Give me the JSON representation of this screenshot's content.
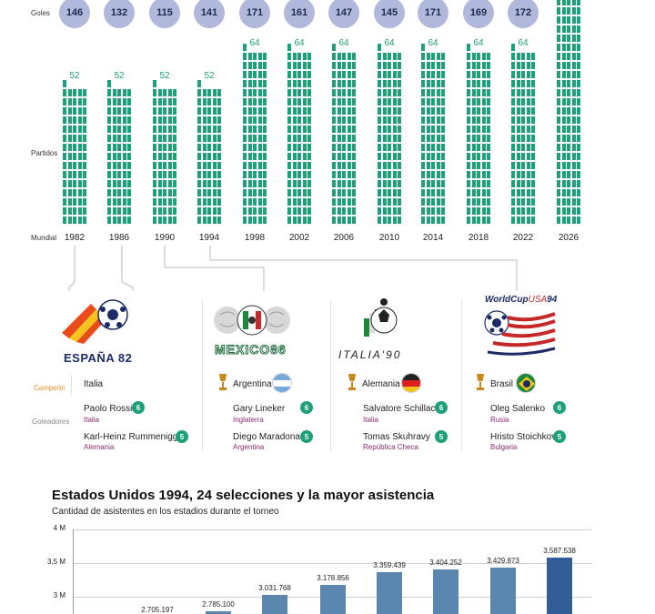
{
  "labels": {
    "goals": "Goles",
    "matches": "Partidos",
    "worldcup": "Mundial",
    "champion": "Campeón",
    "scorers": "Goleadores"
  },
  "chart_data": [
    {
      "type": "bar",
      "categories": [
        "1982",
        "1986",
        "1990",
        "1994",
        "1998",
        "2002",
        "2006",
        "2010",
        "2014",
        "2018",
        "2022",
        "2026"
      ],
      "series": [
        {
          "name": "Goles",
          "values": [
            146,
            132,
            115,
            141,
            171,
            161,
            147,
            145,
            171,
            169,
            172,
            null
          ]
        },
        {
          "name": "Partidos",
          "values": [
            52,
            52,
            52,
            52,
            64,
            64,
            64,
            64,
            64,
            64,
            64,
            null
          ]
        }
      ]
    },
    {
      "type": "bar",
      "title": "Estados Unidos 1994, 24 selecciones y la mayor asistencia",
      "subtitle": "Cantidad de asistentes en los estadios durante el torneo",
      "ylim": [
        2.6,
        4
      ],
      "yticks": [
        "4 M",
        "3,5 M",
        "3 M"
      ],
      "values": [
        2.705197,
        2.7851,
        3.031768,
        3.178856,
        3.359439,
        3.404252,
        3.429873,
        3.587538
      ],
      "labels": [
        "2.705.197",
        "2.785.100",
        "3.031.768",
        "3.178.856",
        "3.359.439",
        "3.404.252",
        "3.429.873",
        "3.587.538"
      ]
    }
  ],
  "tournaments": [
    {
      "logo_text": "ESPAÑA 82",
      "champion": "Italia",
      "scorers": [
        {
          "name": "Paolo Rossi",
          "country": "Italia",
          "goals": "6"
        },
        {
          "name": "Karl-Heinz Rummenigge",
          "country": "Alemania",
          "goals": "5"
        }
      ]
    },
    {
      "logo_text": "MEXICO86",
      "champion": "Argentina",
      "scorers": [
        {
          "name": "Gary Lineker",
          "country": "Inglaterra",
          "goals": "6"
        },
        {
          "name": "Diego Maradona",
          "country": "Argentina",
          "goals": "5"
        }
      ]
    },
    {
      "logo_text": "ITALIA'90",
      "champion": "Alemania",
      "scorers": [
        {
          "name": "Salvatore Schillaci",
          "country": "Italia",
          "goals": "6"
        },
        {
          "name": "Tomas Skuhravy",
          "country": "República Checa",
          "goals": "5"
        }
      ]
    },
    {
      "logo_text_a": "WorldCup",
      "logo_text_b": "USA",
      "logo_text_c": "94",
      "champion": "Brasil",
      "scorers": [
        {
          "name": "Oleg Salenko",
          "country": "Rusia",
          "goals": "6"
        },
        {
          "name": "Hristo Stoichkov",
          "country": "Bulgaria",
          "goals": "5"
        }
      ]
    }
  ],
  "colors": {
    "goal_circle": "#b0b9dc",
    "match_cell": "#1ea07a",
    "bar": "#5b86ad",
    "bar_highlight": "#335d96",
    "country_text": "#8a2b6e",
    "champion_label": "#e8902a"
  }
}
